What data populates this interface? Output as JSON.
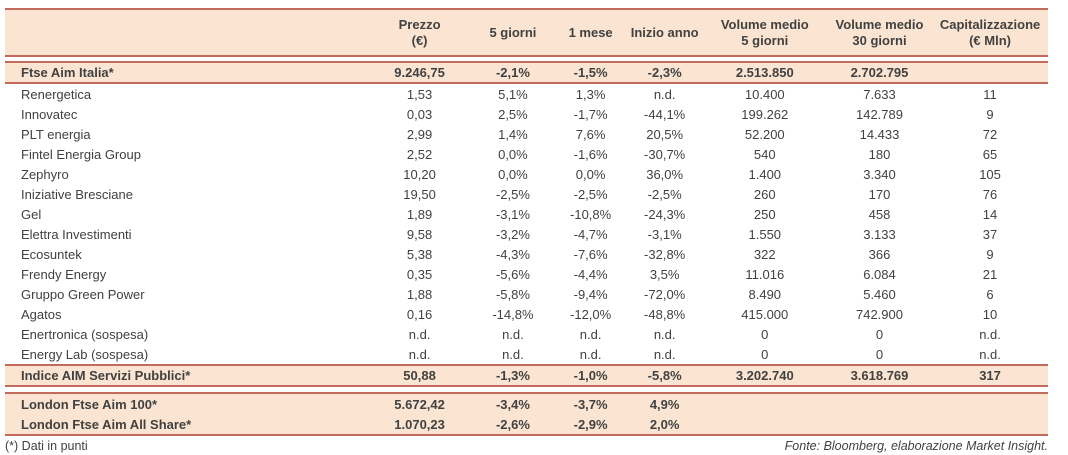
{
  "colors": {
    "accent_border": "#c26a5b",
    "section_background": "#fbe5d2",
    "text": "#414141"
  },
  "header": {
    "columns": [
      {
        "line1": "Prezzo",
        "line2": "(€)"
      },
      {
        "line1": "5 giorni",
        "line2": ""
      },
      {
        "line1": "1 mese",
        "line2": ""
      },
      {
        "line1": "Inizio anno",
        "line2": ""
      },
      {
        "line1": "Volume medio",
        "line2": "5 giorni"
      },
      {
        "line1": "Volume medio",
        "line2": "30 giorni"
      },
      {
        "line1": "Capitalizzazione",
        "line2": "(€ Mln)"
      }
    ]
  },
  "sections": {
    "ftse_aim": {
      "row": {
        "name": "Ftse Aim Italia*",
        "values": [
          "9.246,75",
          "-2,1%",
          "-1,5%",
          "-2,3%",
          "2.513.850",
          "2.702.795",
          ""
        ]
      }
    },
    "companies": {
      "rows": [
        {
          "name": "Renergetica",
          "values": [
            "1,53",
            "5,1%",
            "1,3%",
            "n.d.",
            "10.400",
            "7.633",
            "11"
          ]
        },
        {
          "name": "Innovatec",
          "values": [
            "0,03",
            "2,5%",
            "-1,7%",
            "-44,1%",
            "199.262",
            "142.789",
            "9"
          ]
        },
        {
          "name": "PLT energia",
          "values": [
            "2,99",
            "1,4%",
            "7,6%",
            "20,5%",
            "52.200",
            "14.433",
            "72"
          ]
        },
        {
          "name": "Fintel Energia Group",
          "values": [
            "2,52",
            "0,0%",
            "-1,6%",
            "-30,7%",
            "540",
            "180",
            "65"
          ]
        },
        {
          "name": "Zephyro",
          "values": [
            "10,20",
            "0,0%",
            "0,0%",
            "36,0%",
            "1.400",
            "3.340",
            "105"
          ]
        },
        {
          "name": "Iniziative Bresciane",
          "values": [
            "19,50",
            "-2,5%",
            "-2,5%",
            "-2,5%",
            "260",
            "170",
            "76"
          ]
        },
        {
          "name": "Gel",
          "values": [
            "1,89",
            "-3,1%",
            "-10,8%",
            "-24,3%",
            "250",
            "458",
            "14"
          ]
        },
        {
          "name": "Elettra Investimenti",
          "values": [
            "9,58",
            "-3,2%",
            "-4,7%",
            "-3,1%",
            "1.550",
            "3.133",
            "37"
          ]
        },
        {
          "name": "Ecosuntek",
          "values": [
            "5,38",
            "-4,3%",
            "-7,6%",
            "-32,8%",
            "322",
            "366",
            "9"
          ]
        },
        {
          "name": "Frendy Energy",
          "values": [
            "0,35",
            "-5,6%",
            "-4,4%",
            "3,5%",
            "11.016",
            "6.084",
            "21"
          ]
        },
        {
          "name": "Gruppo Green Power",
          "values": [
            "1,88",
            "-5,8%",
            "-9,4%",
            "-72,0%",
            "8.490",
            "5.460",
            "6"
          ]
        },
        {
          "name": "Agatos",
          "values": [
            "0,16",
            "-14,8%",
            "-12,0%",
            "-48,8%",
            "415.000",
            "742.900",
            "10"
          ]
        },
        {
          "name": "Enertronica (sospesa)",
          "values": [
            "n.d.",
            "n.d.",
            "n.d.",
            "n.d.",
            "0",
            "0",
            "n.d."
          ]
        },
        {
          "name": "Energy Lab (sospesa)",
          "values": [
            "n.d.",
            "n.d.",
            "n.d.",
            "n.d.",
            "0",
            "0",
            "n.d."
          ]
        }
      ]
    },
    "servizi_pubblici": {
      "row": {
        "name": "Indice AIM Servizi Pubblici*",
        "values": [
          "50,88",
          "-1,3%",
          "-1,0%",
          "-5,8%",
          "3.202.740",
          "3.618.769",
          "317"
        ]
      }
    },
    "london": {
      "rows": [
        {
          "name": "London Ftse Aim 100*",
          "values": [
            "5.672,42",
            "-3,4%",
            "-3,7%",
            "4,9%",
            "",
            "",
            ""
          ]
        },
        {
          "name": "London Ftse Aim All Share*",
          "values": [
            "1.070,23",
            "-2,6%",
            "-2,9%",
            "2,0%",
            "",
            "",
            ""
          ]
        }
      ]
    }
  },
  "footer": {
    "note": "(*) Dati in punti",
    "source": "Fonte: Bloomberg, elaborazione Market Insight."
  }
}
